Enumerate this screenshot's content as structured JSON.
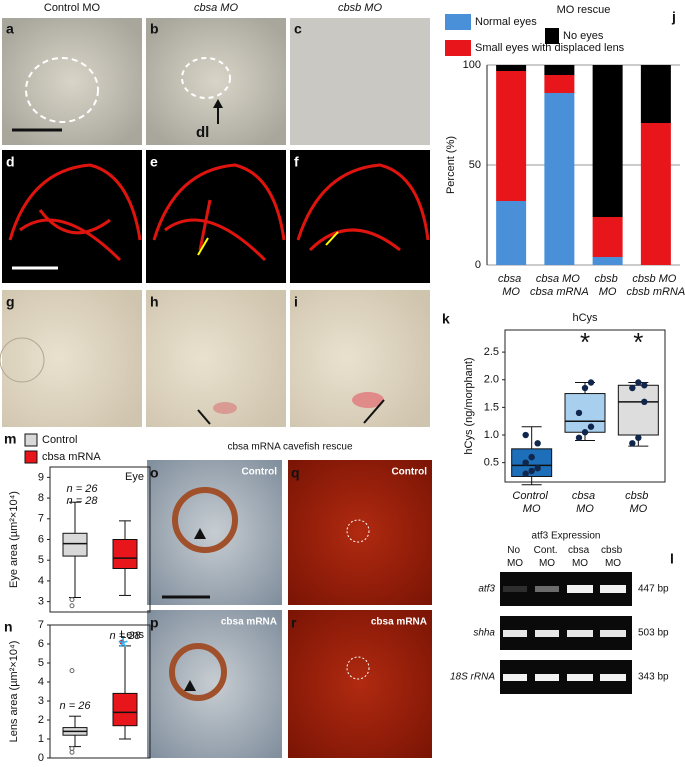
{
  "column_headers": [
    "Control MO",
    "cbsa MO",
    "cbsb MO"
  ],
  "photo_panels": [
    {
      "letter": "a"
    },
    {
      "letter": "b"
    },
    {
      "letter": "c"
    },
    {
      "letter": "d"
    },
    {
      "letter": "e"
    },
    {
      "letter": "f"
    },
    {
      "letter": "g"
    },
    {
      "letter": "h"
    },
    {
      "letter": "i"
    }
  ],
  "arrow_label": "dl",
  "rescue_title": "cbsa mRNA cavefish rescue",
  "rescue_panels": [
    {
      "letter": "o",
      "label": "Control"
    },
    {
      "letter": "p",
      "label": "cbsa mRNA"
    },
    {
      "letter": "q",
      "label": "Control"
    },
    {
      "letter": "r",
      "label": "cbsa mRNA"
    }
  ],
  "chart_data": [
    {
      "panel": "j",
      "type": "stacked_bar",
      "title": "MO rescue",
      "y_label": "Percent (%)",
      "categories": [
        "cbsa MO",
        "cbsa MO cbsa mRNA",
        "cbsb MO",
        "cbsb MO cbsb mRNA"
      ],
      "series": [
        {
          "name": "Normal eyes",
          "color": "#4a90d9",
          "values": [
            32,
            86,
            4,
            0
          ]
        },
        {
          "name": "Small eyes with displaced lens",
          "color": "#e8161b",
          "values": [
            65,
            9,
            20,
            71
          ]
        },
        {
          "name": "No eyes",
          "color": "#000000",
          "values": [
            3,
            5,
            76,
            29
          ]
        }
      ],
      "ylim": [
        0,
        100
      ],
      "yticks": [
        0,
        50,
        100
      ],
      "grid": true
    },
    {
      "panel": "k",
      "type": "box",
      "title": "hCys",
      "y_label": "hCys (ng/morphant)",
      "categories": [
        "Control MO",
        "cbsa MO",
        "cbsb MO"
      ],
      "series": [
        {
          "color": "#1c6fb8",
          "whislo": 0.1,
          "q1": 0.25,
          "med": 0.45,
          "q3": 0.75,
          "whishi": 1.15,
          "points": [
            0.3,
            0.35,
            0.4,
            0.5,
            0.6,
            0.85,
            1.0
          ]
        },
        {
          "color": "#a8d0ee",
          "whislo": 0.9,
          "q1": 1.05,
          "med": 1.25,
          "q3": 1.75,
          "whishi": 1.95,
          "points": [
            0.95,
            1.05,
            1.15,
            1.4,
            1.85,
            1.95
          ],
          "annotation": "*"
        },
        {
          "color": "#dddddd",
          "whislo": 0.8,
          "q1": 1.0,
          "med": 1.6,
          "q3": 1.9,
          "whishi": 1.95,
          "points": [
            0.85,
            0.95,
            1.6,
            1.85,
            1.95,
            1.9
          ],
          "annotation": "*"
        }
      ],
      "ylim": [
        0.15,
        2.9
      ],
      "yticks": [
        0.5,
        {
          "value": 1,
          "label": "1.0"
        },
        1.5,
        {
          "value": 2,
          "label": "2.0"
        },
        2.5
      ]
    },
    {
      "panel": "m",
      "type": "box",
      "inner_label": "Eye",
      "y_label": "Eye area (µm²×10⁴)",
      "series": [
        {
          "name": "Control",
          "color": "#d9d9d9",
          "whislo": 3.2,
          "q1": 5.2,
          "med": 5.8,
          "q3": 6.3,
          "whishi": 7.8,
          "fliers": [
            2.8,
            3.1
          ],
          "n_label": "n = 26"
        },
        {
          "name": "cbsa mRNA",
          "color": "#e8161b",
          "whislo": 3.3,
          "q1": 4.6,
          "med": 5.1,
          "q3": 6.0,
          "whishi": 6.9,
          "fliers": [],
          "n_label": "n = 28"
        }
      ],
      "ylim": [
        2.5,
        9.5
      ],
      "yticks": [
        3,
        4,
        5,
        6,
        7,
        8,
        9
      ]
    },
    {
      "panel": "n",
      "type": "box",
      "inner_label": "Lens",
      "y_label": "Lens area (µm²×10⁴)",
      "annotation": "*",
      "annotation_color": "#29b6f6",
      "series": [
        {
          "color": "#d9d9d9",
          "whislo": 0.6,
          "q1": 1.2,
          "med": 1.4,
          "q3": 1.6,
          "whishi": 2.2,
          "fliers": [
            0.3,
            0.5,
            4.6
          ],
          "n_label": "n = 26"
        },
        {
          "color": "#e8161b",
          "whislo": 1.0,
          "q1": 1.7,
          "med": 2.4,
          "q3": 3.4,
          "whishi": 5.9,
          "fliers": [
            6.1
          ],
          "n_label": "n = 28"
        }
      ],
      "ylim": [
        0,
        7
      ],
      "yticks": [
        0,
        1,
        2,
        3,
        4,
        5,
        6,
        7
      ]
    }
  ],
  "gel": {
    "panel": "l",
    "title": "atf3 Expression",
    "lanes": [
      "No MO",
      "Cont. MO",
      "cbsa MO",
      "cbsb MO"
    ],
    "rows": [
      {
        "gene": "atf3",
        "size": "447 bp"
      },
      {
        "gene": "shha",
        "size": "503 bp"
      },
      {
        "gene": "18S rRNA",
        "size": "343 bp"
      }
    ]
  }
}
